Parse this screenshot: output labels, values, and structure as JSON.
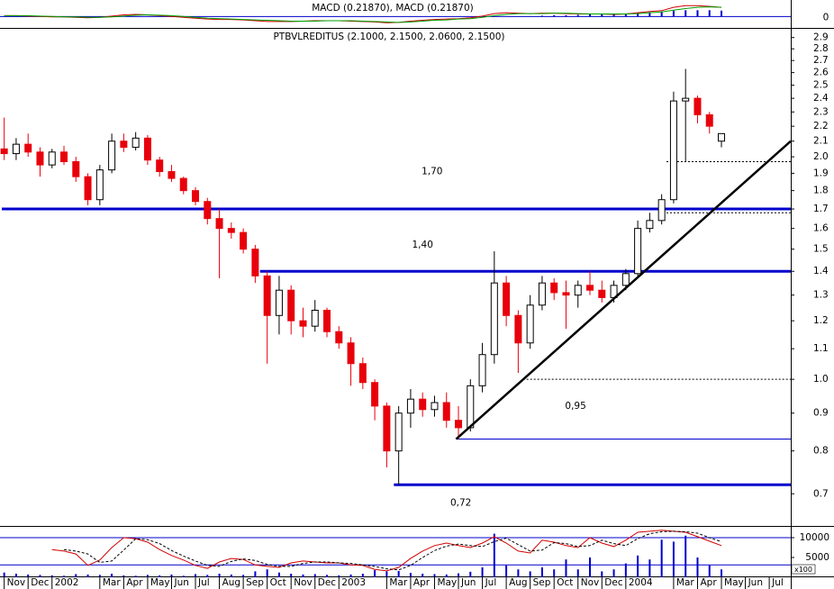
{
  "chart_data": {
    "type": "candlestick",
    "title": "PTBVLREDITUS (2.1000, 2.1500, 2.0600, 2.1500)",
    "x": [
      0,
      0.5,
      1,
      1.5,
      2,
      2.5,
      3,
      3.5,
      4,
      4.5,
      5,
      5.5,
      6,
      6.5,
      7,
      7.5,
      8,
      8.5,
      9,
      9.5,
      10,
      10.5,
      11,
      11.5,
      12,
      12.5,
      13,
      13.5,
      14,
      14.5,
      15,
      15.5,
      16,
      16.5,
      17,
      17.5,
      18,
      18.5,
      19,
      19.5,
      20,
      20.5,
      21,
      21.5,
      22,
      22.5,
      23,
      23.5,
      24,
      24.5,
      25,
      25.5,
      26,
      26.5,
      27,
      27.5,
      28,
      28.5,
      29,
      29.5,
      30
    ],
    "open": [
      2.05,
      2.02,
      2.08,
      2.03,
      1.95,
      2.03,
      1.97,
      1.88,
      1.75,
      1.92,
      2.1,
      2.06,
      2.12,
      1.98,
      1.91,
      1.87,
      1.8,
      1.74,
      1.65,
      1.6,
      1.58,
      1.5,
      1.38,
      1.22,
      1.32,
      1.2,
      1.18,
      1.24,
      1.16,
      1.12,
      1.05,
      0.99,
      0.92,
      0.8,
      0.9,
      0.94,
      0.91,
      0.93,
      0.88,
      0.86,
      0.98,
      1.08,
      1.35,
      1.22,
      1.12,
      1.26,
      1.35,
      1.31,
      1.3,
      1.34,
      1.32,
      1.29,
      1.34,
      1.39,
      1.6,
      1.64,
      1.75,
      2.38,
      2.4,
      2.28,
      2.1
    ],
    "high": [
      2.26,
      2.12,
      2.15,
      2.06,
      2.05,
      2.07,
      2.0,
      1.9,
      1.95,
      2.15,
      2.15,
      2.16,
      2.14,
      2.0,
      1.95,
      1.88,
      1.82,
      1.76,
      1.7,
      1.63,
      1.6,
      1.52,
      1.4,
      1.38,
      1.34,
      1.25,
      1.28,
      1.25,
      1.18,
      1.14,
      1.07,
      1.0,
      0.93,
      0.92,
      0.97,
      0.96,
      0.95,
      0.96,
      0.92,
      1.0,
      1.12,
      1.49,
      1.38,
      1.24,
      1.3,
      1.38,
      1.37,
      1.36,
      1.36,
      1.4,
      1.36,
      1.36,
      1.41,
      1.64,
      1.68,
      1.78,
      2.45,
      2.63,
      2.42,
      2.3,
      2.15
    ],
    "low": [
      1.98,
      1.98,
      2.0,
      1.88,
      1.93,
      1.95,
      1.85,
      1.72,
      1.72,
      1.9,
      2.03,
      2.04,
      1.95,
      1.88,
      1.85,
      1.78,
      1.72,
      1.62,
      1.37,
      1.55,
      1.48,
      1.35,
      1.05,
      1.15,
      1.15,
      1.14,
      1.16,
      1.14,
      1.1,
      0.98,
      0.97,
      0.88,
      0.76,
      0.72,
      0.86,
      0.89,
      0.89,
      0.86,
      0.83,
      0.85,
      0.96,
      1.05,
      1.18,
      1.02,
      1.1,
      1.24,
      1.28,
      1.17,
      1.25,
      1.3,
      1.27,
      1.27,
      1.32,
      1.38,
      1.58,
      1.62,
      1.73,
      1.97,
      2.22,
      2.15,
      2.06
    ],
    "close": [
      2.02,
      2.08,
      2.03,
      1.95,
      2.03,
      1.97,
      1.88,
      1.75,
      1.92,
      2.1,
      2.06,
      2.12,
      1.98,
      1.91,
      1.87,
      1.8,
      1.74,
      1.65,
      1.6,
      1.58,
      1.5,
      1.38,
      1.22,
      1.32,
      1.2,
      1.18,
      1.24,
      1.16,
      1.12,
      1.05,
      0.99,
      0.92,
      0.8,
      0.9,
      0.94,
      0.91,
      0.93,
      0.88,
      0.86,
      0.98,
      1.08,
      1.35,
      1.22,
      1.12,
      1.26,
      1.35,
      1.31,
      1.3,
      1.34,
      1.32,
      1.29,
      1.34,
      1.39,
      1.6,
      1.64,
      1.75,
      2.38,
      2.4,
      2.28,
      2.2,
      2.15
    ],
    "up_color": "#ffffff",
    "down_color": "#e8000b",
    "log_scale": true,
    "xlim": [
      -0.1,
      32.9
    ],
    "xticks": [
      {
        "value": 0,
        "label": "Nov"
      },
      {
        "value": 1,
        "label": "Dec"
      },
      {
        "value": 2,
        "label": "2002"
      },
      {
        "value": 4,
        "label": "Mar"
      },
      {
        "value": 5,
        "label": "Apr"
      },
      {
        "value": 6,
        "label": "May"
      },
      {
        "value": 7,
        "label": "Jun"
      },
      {
        "value": 8,
        "label": "Jul"
      },
      {
        "value": 9,
        "label": "Aug"
      },
      {
        "value": 10,
        "label": "Sep"
      },
      {
        "value": 11,
        "label": "Oct"
      },
      {
        "value": 12,
        "label": "Nov"
      },
      {
        "value": 13,
        "label": "Dec"
      },
      {
        "value": 14,
        "label": "2003"
      },
      {
        "value": 16,
        "label": "Mar"
      },
      {
        "value": 17,
        "label": "Apr"
      },
      {
        "value": 18,
        "label": "May"
      },
      {
        "value": 19,
        "label": "Jun"
      },
      {
        "value": 20,
        "label": "Jul"
      },
      {
        "value": 21,
        "label": "Aug"
      },
      {
        "value": 22,
        "label": "Sep"
      },
      {
        "value": 23,
        "label": "Oct"
      },
      {
        "value": 24,
        "label": "Nov"
      },
      {
        "value": 25,
        "label": "Dec"
      },
      {
        "value": 26,
        "label": "2004"
      },
      {
        "value": 28,
        "label": "Mar"
      },
      {
        "value": 29,
        "label": "Apr"
      },
      {
        "value": 30,
        "label": "May"
      },
      {
        "value": 31,
        "label": "Jun"
      },
      {
        "value": 32,
        "label": "Jul"
      }
    ],
    "ylim": [
      0.635,
      2.98
    ],
    "yticks": [
      0.7,
      0.8,
      0.9,
      {
        "value": 1,
        "label": "1.0"
      },
      1.1,
      1.2,
      1.3,
      1.4,
      1.5,
      1.6,
      1.7,
      1.8,
      1.9,
      {
        "value": 2,
        "label": "2.0"
      },
      2.1,
      2.2,
      2.3,
      2.4,
      2.5,
      2.6,
      2.7,
      2.8,
      2.9
    ],
    "levels": [
      {
        "value": 1.7,
        "x0": -0.1,
        "style": "thick",
        "color": "#0000cc"
      },
      {
        "value": 1.4,
        "x0": 10.7,
        "style": "thick",
        "color": "#0000cc"
      },
      {
        "value": 0.72,
        "x0": 16.3,
        "style": "thick",
        "color": "#0000cc"
      },
      {
        "value": 0.83,
        "x0": 18.9,
        "style": "thin",
        "color": "#0000cc"
      },
      {
        "value": 1.97,
        "x0": 27.7,
        "style": "dotted",
        "color": "#000000"
      },
      {
        "value": 1.68,
        "x0": 27.7,
        "style": "dotted",
        "color": "#000000"
      },
      {
        "value": 1.0,
        "x0": 21.7,
        "style": "dotted",
        "color": "#000000"
      }
    ],
    "trendline": {
      "x": [
        18.9,
        32.9
      ],
      "values": [
        0.83,
        2.1
      ],
      "color": "#000000"
    },
    "annotations": [
      {
        "text": "1,70",
        "x": 17.9,
        "y": 1.91
      },
      {
        "text": "1,40",
        "x": 17.5,
        "y": 1.52
      },
      {
        "text": "0,95",
        "x": 23.9,
        "y": 0.92
      },
      {
        "text": "0,72",
        "x": 19.1,
        "y": 0.68
      }
    ],
    "annotation_color": "#0000cc",
    "macd": {
      "title": "MACD (0.21870), MACD (0.21870)",
      "ylim": [
        -0.25,
        0.35
      ],
      "yticks": [
        0
      ],
      "zero_line_color": "#0000cc",
      "series": [
        {
          "color": "#d00000",
          "values": [
            0.02,
            0.02,
            0.01,
            0,
            -0.01,
            -0.01,
            -0.02,
            -0.03,
            -0.02,
            0.01,
            0.04,
            0.05,
            0.04,
            0.02,
            0,
            -0.02,
            -0.04,
            -0.06,
            -0.07,
            -0.07,
            -0.08,
            -0.1,
            -0.12,
            -0.12,
            -0.12,
            -0.11,
            -0.1,
            -0.1,
            -0.1,
            -0.11,
            -0.12,
            -0.13,
            -0.15,
            -0.14,
            -0.11,
            -0.09,
            -0.07,
            -0.06,
            -0.05,
            -0.03,
            0.01,
            0.07,
            0.09,
            0.08,
            0.07,
            0.08,
            0.08,
            0.07,
            0.06,
            0.06,
            0.06,
            0.05,
            0.06,
            0.09,
            0.12,
            0.14,
            0.22,
            0.26,
            0.26,
            0.24,
            0.2187
          ]
        },
        {
          "color": "#00a000",
          "values": [
            0.02,
            0.02,
            0.02,
            0.01,
            0,
            -0.01,
            -0.01,
            -0.02,
            -0.02,
            -0.01,
            0.01,
            0.03,
            0.04,
            0.03,
            0.02,
            0,
            -0.02,
            -0.04,
            -0.05,
            -0.06,
            -0.07,
            -0.08,
            -0.09,
            -0.1,
            -0.11,
            -0.11,
            -0.11,
            -0.1,
            -0.1,
            -0.1,
            -0.11,
            -0.12,
            -0.13,
            -0.14,
            -0.13,
            -0.11,
            -0.09,
            -0.08,
            -0.06,
            -0.05,
            -0.02,
            0.02,
            0.05,
            0.07,
            0.07,
            0.07,
            0.08,
            0.08,
            0.07,
            0.06,
            0.06,
            0.06,
            0.06,
            0.07,
            0.09,
            0.11,
            0.15,
            0.19,
            0.22,
            0.23,
            0.2187
          ]
        }
      ],
      "histogram": {
        "color": "#0000cc",
        "x": [
          22.5,
          23,
          23.5,
          24,
          24.5,
          25,
          25.5,
          26,
          26.5,
          27,
          27.5,
          28,
          28.5,
          29,
          29.5,
          30
        ],
        "values": [
          0.02,
          0.03,
          0.03,
          0.04,
          0.05,
          0.05,
          0.05,
          0.06,
          0.08,
          0.1,
          0.12,
          0.14,
          0.15,
          0.15,
          0.15,
          0.14
        ]
      }
    },
    "oscillator": {
      "ylim": [
        0,
        100
      ],
      "levels": [
        80,
        25
      ],
      "level_color": "#0000cc",
      "series": [
        {
          "color": "#d00000",
          "style": "solid",
          "values": [
            null,
            null,
            null,
            null,
            56,
            53,
            47,
            24,
            35,
            60,
            80,
            78,
            71,
            56,
            44,
            35,
            24,
            18,
            31,
            38,
            36,
            25,
            22,
            20,
            29,
            33,
            31,
            29,
            29,
            25,
            24,
            16,
            13,
            20,
            38,
            53,
            64,
            69,
            64,
            60,
            69,
            82,
            69,
            53,
            49,
            75,
            71,
            64,
            60,
            80,
            69,
            62,
            75,
            91,
            93,
            95,
            93,
            91,
            82,
            73,
            64
          ]
        },
        {
          "color": "#000000",
          "style": "dashed",
          "values": [
            null,
            null,
            null,
            null,
            null,
            56,
            53,
            47,
            30,
            33,
            55,
            78,
            76,
            68,
            54,
            43,
            33,
            24,
            22,
            32,
            37,
            34,
            26,
            22,
            22,
            28,
            31,
            31,
            29,
            28,
            25,
            22,
            17,
            15,
            24,
            40,
            54,
            63,
            67,
            64,
            62,
            72,
            79,
            66,
            53,
            55,
            70,
            68,
            62,
            64,
            75,
            68,
            64,
            78,
            88,
            92,
            93,
            92,
            89,
            80,
            72
          ]
        }
      ]
    },
    "volume": {
      "ylim": [
        0,
        12500
      ],
      "yticks": [
        5000,
        10000
      ],
      "unit": "x100",
      "color": "#0000cc",
      "values": [
        1200,
        900,
        700,
        600,
        500,
        400,
        800,
        700,
        600,
        900,
        500,
        400,
        600,
        500,
        700,
        400,
        800,
        600,
        900,
        700,
        600,
        1500,
        2000,
        1200,
        900,
        700,
        800,
        600,
        500,
        700,
        900,
        1800,
        1500,
        1600,
        1100,
        900,
        800,
        700,
        1000,
        1400,
        2500,
        11000,
        3000,
        2000,
        1500,
        2500,
        2000,
        4500,
        2000,
        5000,
        1500,
        2000,
        3500,
        5500,
        4500,
        9500,
        9000,
        10500,
        5000,
        3000,
        2000
      ]
    }
  }
}
